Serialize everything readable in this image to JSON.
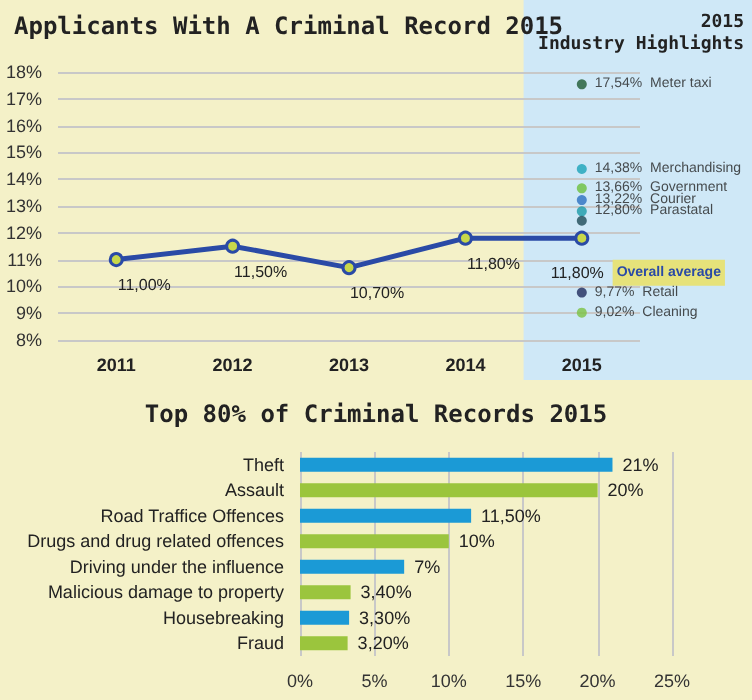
{
  "chart_data": [
    {
      "type": "line",
      "title": "Applicants With A Criminal Record 2015",
      "categories": [
        "2011",
        "2012",
        "2013",
        "2014",
        "2015"
      ],
      "series": [
        {
          "name": "Overall average",
          "color": "#2a4aa6",
          "values": [
            11.0,
            11.5,
            10.7,
            11.8,
            11.8
          ],
          "value_labels": [
            "11,00%",
            "11,50%",
            "10,70%",
            "11,80%",
            "11,80%"
          ]
        },
        {
          "type": "scatter",
          "name": "Meter taxi",
          "color": "#1e5a32",
          "values": [
            null,
            null,
            null,
            null,
            17.54
          ],
          "value_labels": [
            null,
            null,
            null,
            null,
            "17,54%"
          ]
        },
        {
          "type": "scatter",
          "name": "Merchandising",
          "color": "#1aa3b8",
          "values": [
            null,
            null,
            null,
            null,
            14.38
          ],
          "value_labels": [
            null,
            null,
            null,
            null,
            "14,38%"
          ]
        },
        {
          "type": "scatter",
          "name": "Government",
          "color": "#6cbf3c",
          "values": [
            null,
            null,
            null,
            null,
            13.66
          ],
          "value_labels": [
            null,
            null,
            null,
            null,
            "13,66%"
          ]
        },
        {
          "type": "scatter",
          "name": "Courier",
          "color": "#2a6fc0",
          "values": [
            null,
            null,
            null,
            null,
            13.22
          ],
          "value_labels": [
            null,
            null,
            null,
            null,
            "13,22%"
          ]
        },
        {
          "type": "scatter",
          "name": "Parastatal",
          "color": "#1a9aa8",
          "values": [
            null,
            null,
            null,
            null,
            12.8
          ],
          "value_labels": [
            null,
            null,
            null,
            null,
            "12,80%"
          ]
        },
        {
          "type": "scatter",
          "color": "#1d4a56",
          "values": [
            null,
            null,
            null,
            null,
            12.45
          ]
        },
        {
          "type": "scatter",
          "name": "Retail",
          "color": "#1f2a5c",
          "values": [
            null,
            null,
            null,
            null,
            9.77
          ],
          "value_labels": [
            null,
            null,
            null,
            null,
            "9,77%"
          ]
        },
        {
          "type": "scatter",
          "name": "Cleaning",
          "color": "#7cc242",
          "values": [
            null,
            null,
            null,
            null,
            9.02
          ],
          "value_labels": [
            null,
            null,
            null,
            null,
            "9,02%"
          ]
        }
      ],
      "ylim": [
        8,
        18
      ],
      "yticks": [
        {
          "value": 8,
          "label": "8%"
        },
        {
          "value": 9,
          "label": "9%"
        },
        {
          "value": 10,
          "label": "10%"
        },
        {
          "value": 11,
          "label": "11%"
        },
        {
          "value": 12,
          "label": "12%"
        },
        {
          "value": 13,
          "label": "13%"
        },
        {
          "value": 14,
          "label": "14%"
        },
        {
          "value": 15,
          "label": "15%"
        },
        {
          "value": 16,
          "label": "16%"
        },
        {
          "value": 17,
          "label": "17%"
        },
        {
          "value": 18,
          "label": "18%"
        }
      ],
      "grid": "y",
      "marker": "circle",
      "bands": [
        {
          "axis": "x",
          "from": "2015",
          "to": "2015",
          "label": "2015\nIndustry Highlights",
          "color": "#cfe8f7"
        }
      ]
    },
    {
      "type": "bar",
      "orientation": "horizontal",
      "title": "Top 80% of Criminal Records 2015",
      "categories": [
        "Theft",
        "Assault",
        "Road Traffice Offences",
        "Drugs and drug related offences",
        "Driving under the influence",
        "Malicious damage to property",
        "Housebreaking",
        "Fraud"
      ],
      "values": [
        21,
        20,
        11.5,
        10,
        7,
        3.4,
        3.3,
        3.2
      ],
      "colors": [
        "#1b9ad6",
        "#9bc53d",
        "#1b9ad6",
        "#9bc53d",
        "#1b9ad6",
        "#9bc53d",
        "#1b9ad6",
        "#9bc53d"
      ],
      "value_labels": [
        "21%",
        "20%",
        "11,50%",
        "10%",
        "7%",
        "3,40%",
        "3,30%",
        "3,20%"
      ],
      "xlim": [
        0,
        25
      ],
      "xticks": [
        {
          "value": 0,
          "label": "0%"
        },
        {
          "value": 5,
          "label": "5%"
        },
        {
          "value": 10,
          "label": "10%"
        },
        {
          "value": 15,
          "label": "15%"
        },
        {
          "value": 20,
          "label": "20%"
        },
        {
          "value": 25,
          "label": "25%"
        }
      ],
      "grid": "x"
    }
  ]
}
